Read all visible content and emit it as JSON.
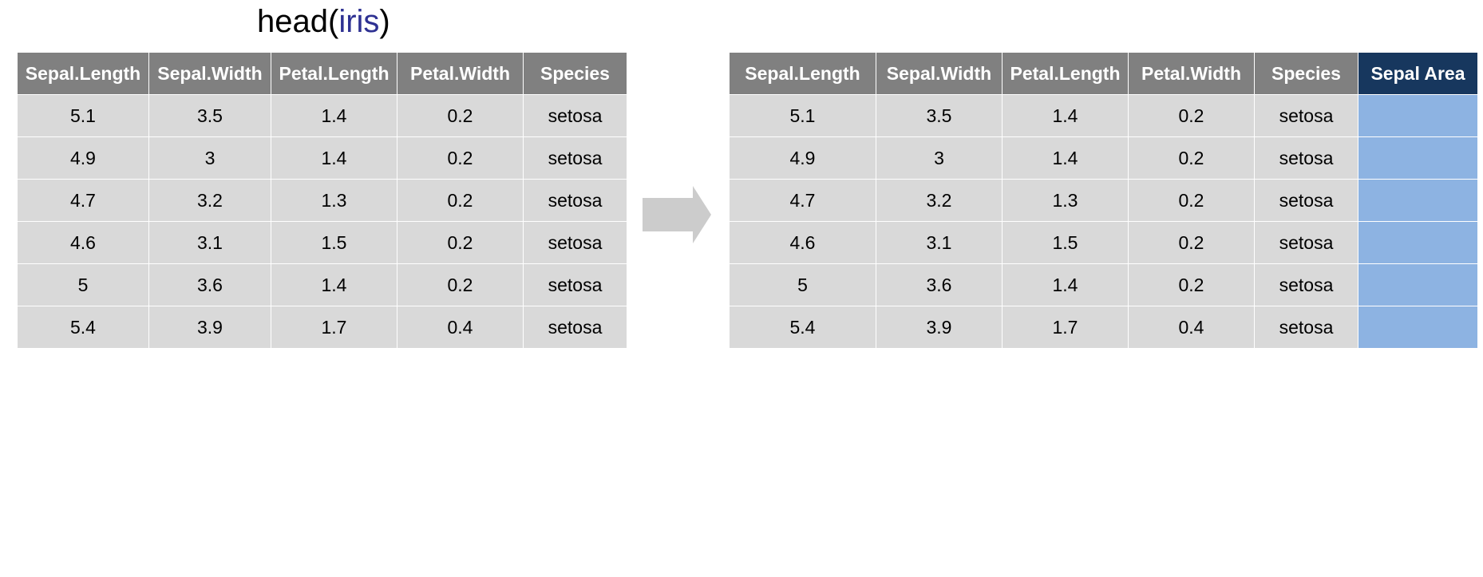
{
  "title": {
    "func": "head(",
    "arg": "iris",
    "close": ")"
  },
  "columns": [
    "Sepal.Length",
    "Sepal.Width",
    "Petal.Length",
    "Petal.Width",
    "Species"
  ],
  "rows": [
    [
      "5.1",
      "3.5",
      "1.4",
      "0.2",
      "setosa"
    ],
    [
      "4.9",
      "3",
      "1.4",
      "0.2",
      "setosa"
    ],
    [
      "4.7",
      "3.2",
      "1.3",
      "0.2",
      "setosa"
    ],
    [
      "4.6",
      "3.1",
      "1.5",
      "0.2",
      "setosa"
    ],
    [
      "5",
      "3.6",
      "1.4",
      "0.2",
      "setosa"
    ],
    [
      "5.4",
      "3.9",
      "1.7",
      "0.4",
      "setosa"
    ]
  ],
  "new_column": "Sepal Area",
  "colors": {
    "header": "#808080",
    "cell": "#d9d9d9",
    "new_header": "#17375e",
    "new_cell": "#8db3e2",
    "arrow": "#cccccc",
    "arg_text": "#2e3192"
  }
}
